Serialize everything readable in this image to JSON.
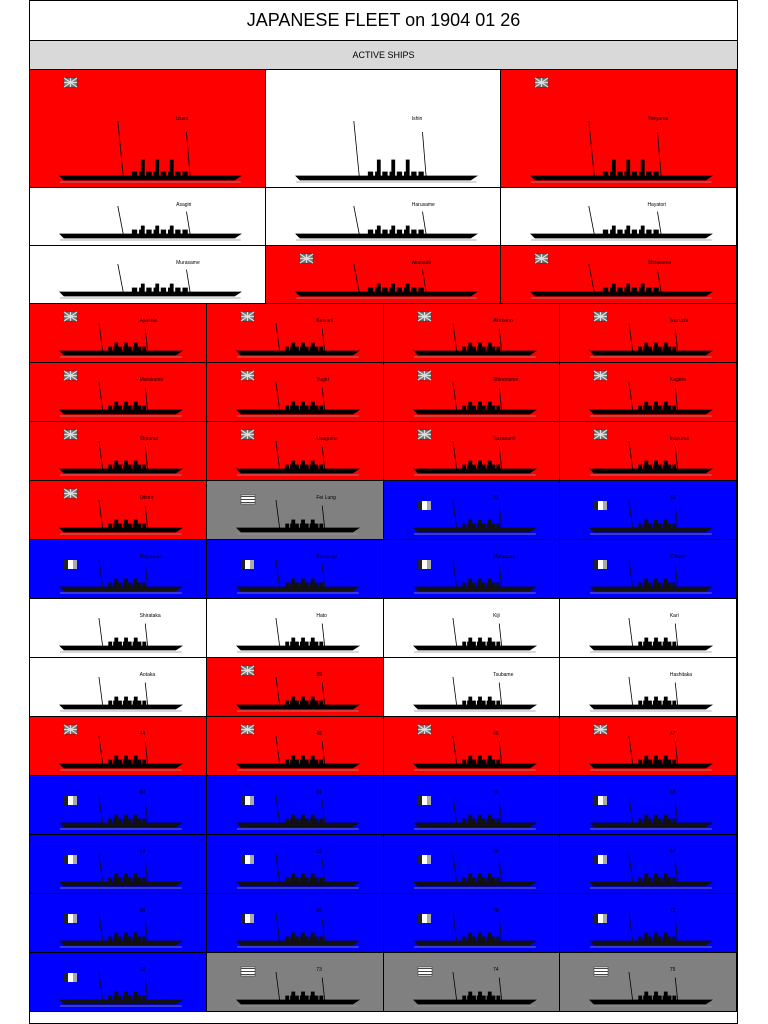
{
  "header": {
    "title": "JAPANESE FLEET on 1904 01 26",
    "subtitle": "ACTIVE SHIPS"
  },
  "rows": [
    {
      "cells": [
        {
          "name": "Izumi",
          "color": "#ff0000",
          "flag": "uk"
        },
        {
          "name": "Ishin",
          "color": "#ffffff",
          "flag": "none"
        },
        {
          "name": "Yaeyama",
          "color": "#ff0000",
          "flag": "uk"
        }
      ]
    },
    {
      "cells": [
        {
          "name": "Asagiri",
          "color": "#ffffff",
          "flag": "none"
        },
        {
          "name": "Harusame",
          "color": "#ffffff",
          "flag": "none"
        },
        {
          "name": "Hayatori",
          "color": "#ffffff",
          "flag": "none"
        }
      ]
    },
    {
      "cells": [
        {
          "name": "Murasame",
          "color": "#ffffff",
          "flag": "none"
        },
        {
          "name": "Akatsuki",
          "color": "#ff0000",
          "flag": "uk"
        },
        {
          "name": "Shirakumo",
          "color": "#ff0000",
          "flag": "uk"
        }
      ]
    },
    {
      "cells": [
        {
          "name": "Asashio",
          "color": "#ff0000",
          "flag": "uk"
        },
        {
          "name": "Kasumi",
          "color": "#ff0000",
          "flag": "uk"
        },
        {
          "name": "Akebono",
          "color": "#ff0000",
          "flag": "uk"
        },
        {
          "name": "Ikazuchi",
          "color": "#ff0000",
          "flag": "uk"
        }
      ]
    },
    {
      "cells": [
        {
          "name": "Murakumo",
          "color": "#ff0000",
          "flag": "uk"
        },
        {
          "name": "Yugiri",
          "color": "#ff0000",
          "flag": "uk"
        },
        {
          "name": "Shinonome",
          "color": "#ff0000",
          "flag": "uk"
        },
        {
          "name": "Kagero",
          "color": "#ff0000",
          "flag": "uk"
        }
      ]
    },
    {
      "cells": [
        {
          "name": "Shiranui",
          "color": "#ff0000",
          "flag": "uk"
        },
        {
          "name": "Usugumo",
          "color": "#ff0000",
          "flag": "uk"
        },
        {
          "name": "Sazanami",
          "color": "#ff0000",
          "flag": "uk"
        },
        {
          "name": "Inazuma",
          "color": "#ff0000",
          "flag": "uk"
        }
      ]
    },
    {
      "cells": [
        {
          "name": "Oboro",
          "color": "#ff0000",
          "flag": "uk"
        },
        {
          "name": "Fei Lung",
          "color": "#808080",
          "flag": "stripes"
        },
        {
          "name": "31",
          "color": "#0000ff",
          "flag": "fr"
        },
        {
          "name": "32",
          "color": "#0000ff",
          "flag": "fr"
        }
      ]
    },
    {
      "cells": [
        {
          "name": "Hayabusa",
          "color": "#0000ff",
          "flag": "fr"
        },
        {
          "name": "Kasasagi",
          "color": "#0000ff",
          "flag": "fr"
        },
        {
          "name": "Manazuru",
          "color": "#0000ff",
          "flag": "fr"
        },
        {
          "name": "Chidori",
          "color": "#0000ff",
          "flag": "fr"
        }
      ]
    },
    {
      "cells": [
        {
          "name": "Shirataka",
          "color": "#ffffff",
          "flag": "none"
        },
        {
          "name": "Hato",
          "color": "#ffffff",
          "flag": "none"
        },
        {
          "name": "Kiji",
          "color": "#ffffff",
          "flag": "none"
        },
        {
          "name": "Kari",
          "color": "#ffffff",
          "flag": "none"
        }
      ]
    },
    {
      "cells": [
        {
          "name": "Aotaka",
          "color": "#ffffff",
          "flag": "none"
        },
        {
          "name": "39",
          "color": "#ff0000",
          "flag": "uk"
        },
        {
          "name": "Tsubame",
          "color": "#ffffff",
          "flag": "none"
        },
        {
          "name": "Hashitaka",
          "color": "#ffffff",
          "flag": "none"
        }
      ]
    },
    {
      "cells": [
        {
          "name": "44",
          "color": "#ff0000",
          "flag": "uk"
        },
        {
          "name": "45",
          "color": "#ff0000",
          "flag": "uk"
        },
        {
          "name": "46",
          "color": "#ff0000",
          "flag": "uk"
        },
        {
          "name": "47",
          "color": "#ff0000",
          "flag": "uk"
        }
      ]
    },
    {
      "cells": [
        {
          "name": "60",
          "color": "#0000ff",
          "flag": "fr"
        },
        {
          "name": "61",
          "color": "#0000ff",
          "flag": "fr"
        },
        {
          "name": "62",
          "color": "#0000ff",
          "flag": "fr"
        },
        {
          "name": "63",
          "color": "#0000ff",
          "flag": "fr"
        }
      ]
    },
    {
      "cells": [
        {
          "name": "64",
          "color": "#0000ff",
          "flag": "fr"
        },
        {
          "name": "65",
          "color": "#0000ff",
          "flag": "fr"
        },
        {
          "name": "66",
          "color": "#0000ff",
          "flag": "fr"
        },
        {
          "name": "67",
          "color": "#0000ff",
          "flag": "fr"
        }
      ]
    },
    {
      "cells": [
        {
          "name": "68",
          "color": "#0000ff",
          "flag": "fr"
        },
        {
          "name": "69",
          "color": "#0000ff",
          "flag": "fr"
        },
        {
          "name": "70",
          "color": "#0000ff",
          "flag": "fr"
        },
        {
          "name": "71",
          "color": "#0000ff",
          "flag": "fr"
        }
      ]
    },
    {
      "cells": [
        {
          "name": "72",
          "color": "#0000ff",
          "flag": "fr"
        },
        {
          "name": "73",
          "color": "#808080",
          "flag": "stripes"
        },
        {
          "name": "74",
          "color": "#808080",
          "flag": "stripes"
        },
        {
          "name": "75",
          "color": "#808080",
          "flag": "stripes"
        }
      ]
    }
  ]
}
